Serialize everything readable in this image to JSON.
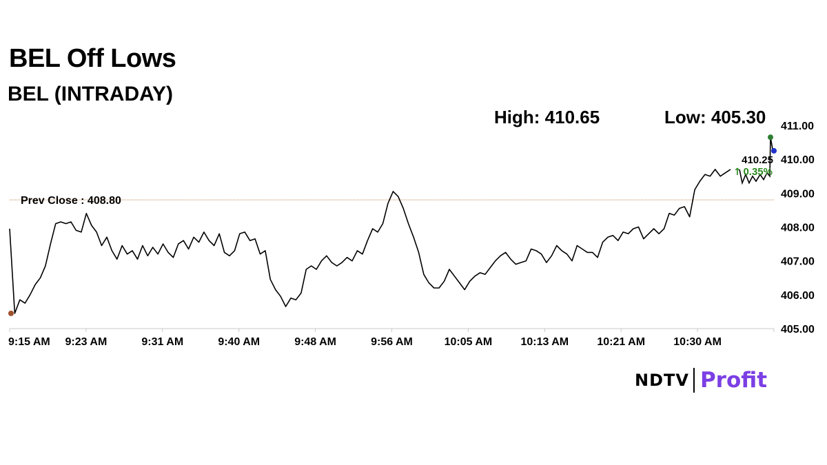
{
  "page": {
    "title": "BEL Off Lows",
    "subtitle": "BEL (INTRADAY)",
    "high_label": "High: 410.65",
    "low_label": "Low: 405.30",
    "brand": {
      "ndtv": "NDTV",
      "profit": "Profit"
    },
    "colors": {
      "line": "#000000",
      "prev_close": "#c08b58",
      "up": "#2a8a1e",
      "low_dot": "#a0522d",
      "high_dot": "#2e7d32",
      "last_dot": "#2233cc",
      "brand_profit": "#7b3fe4"
    }
  },
  "chart_data": {
    "type": "line",
    "title": "BEL (INTRADAY)",
    "xlabel": "",
    "ylabel": "",
    "x_tick_labels": [
      "9:15 AM",
      "9:23 AM",
      "9:31 AM",
      "9:40 AM",
      "9:48 AM",
      "9:56 AM",
      "10:05 AM",
      "10:13 AM",
      "10:21 AM",
      "10:30 AM"
    ],
    "y_tick_labels": [
      "405.00",
      "406.00",
      "407.00",
      "408.00",
      "409.00",
      "410.00",
      "411.00"
    ],
    "ylim": [
      405,
      411
    ],
    "grid": false,
    "prev_close": {
      "label": "Prev Close : 408.80",
      "value": 408.8
    },
    "last": {
      "value_label": "410.25",
      "change_label": "0.35%",
      "value": 410.25
    },
    "series": [
      {
        "values": [
          407.95,
          405.45,
          405.85,
          405.75,
          406.0,
          406.3,
          406.5,
          406.85,
          407.5,
          408.1,
          408.15,
          408.1,
          408.15,
          407.9,
          407.85,
          408.4,
          408.05,
          407.85,
          407.45,
          407.7,
          407.3,
          407.05,
          407.45,
          407.2,
          407.3,
          407.05,
          407.45,
          407.15,
          407.4,
          407.2,
          407.5,
          407.25,
          407.1,
          407.5,
          407.6,
          407.35,
          407.7,
          407.55,
          407.85,
          407.6,
          407.45,
          407.8,
          407.25,
          407.15,
          407.3,
          407.8,
          407.85,
          407.6,
          407.65,
          407.2,
          407.3,
          406.45,
          406.15,
          405.95,
          405.65,
          405.9,
          405.85,
          406.05,
          406.75,
          406.85,
          406.75,
          407.0,
          407.15,
          406.95,
          406.85,
          406.95,
          407.1,
          407.0,
          407.3,
          407.2,
          407.6,
          407.95,
          407.85,
          408.1,
          408.7,
          409.05,
          408.9,
          408.55,
          408.1,
          407.7,
          407.25,
          406.6,
          406.35,
          406.2,
          406.2,
          406.4,
          406.75,
          406.55,
          406.35,
          406.15,
          406.4,
          406.55,
          406.65,
          406.6,
          406.8,
          407.0,
          407.15,
          407.25,
          407.05,
          406.9,
          406.95,
          407.0,
          407.35,
          407.3,
          407.2,
          406.95,
          407.15,
          407.45,
          407.3,
          407.2,
          407.0,
          407.45,
          407.35,
          407.25,
          407.25,
          407.1,
          407.55,
          407.7,
          407.75,
          407.6,
          407.85,
          407.8,
          407.95,
          408.0,
          407.65,
          407.8,
          407.95,
          407.8,
          407.95,
          408.4,
          408.35,
          408.55,
          408.6,
          408.3,
          409.1,
          409.35,
          409.55,
          409.5,
          409.7,
          409.5,
          409.6,
          409.7
        ],
        "color": "#000000"
      }
    ]
  }
}
